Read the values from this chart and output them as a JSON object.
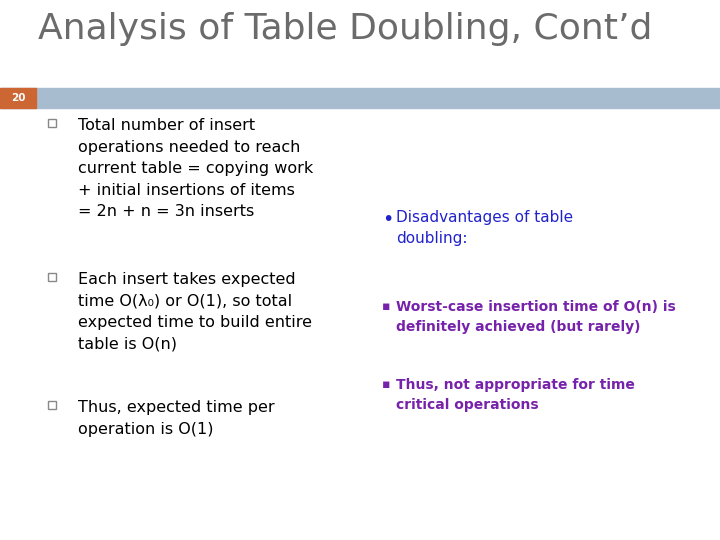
{
  "title": "Analysis of Table Doubling, Cont’d",
  "title_color": "#6b6b6b",
  "title_fontsize": 26,
  "slide_number": "20",
  "slide_num_color": "#ffffff",
  "header_bar_color": "#a8bcd0",
  "slide_num_bg_color": "#cc6633",
  "background_color": "#ffffff",
  "bullet1_lines": [
    "Total number of insert",
    "operations needed to reach",
    "current table = copying work",
    "+ initial insertions of items",
    "= 2n + n = 3n inserts"
  ],
  "bullet2_lines": [
    "Each insert takes expected",
    "time O(λ₀) or O(1), so total",
    "expected time to build entire",
    "table is O(n)"
  ],
  "bullet3_lines": [
    "Thus, expected time per",
    "operation is O(1)"
  ],
  "right_header": "Disadvantages of table\ndoubling:",
  "right_header_color": "#2222cc",
  "right_bullet1_line1": "Worst-case insertion time of O(n) is",
  "right_bullet1_line2": "definitely achieved (but rarely)",
  "right_bullet1_color": "#7722aa",
  "right_bullet2_line1": "Thus, not appropriate for time",
  "right_bullet2_line2": "critical operations",
  "right_bullet2_color": "#7722aa",
  "left_text_color": "#000000",
  "checkbox_color": "#888888",
  "bullet_marker_color": "#2222cc",
  "right_bullet_marker_color": "#7722aa"
}
